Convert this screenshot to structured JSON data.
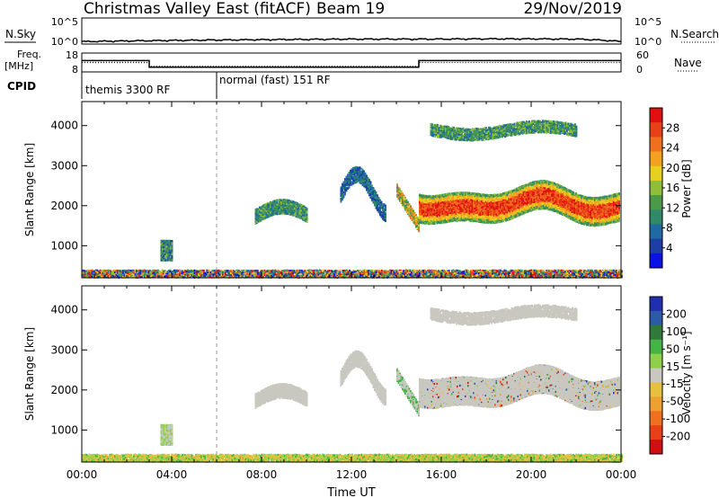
{
  "header": {
    "station": "Christmas Valley East (fitACF)",
    "beam": "Beam 19",
    "date": "29/Nov/2019"
  },
  "top_panel": {
    "nsky_label": "N.Sky",
    "nsky_axis_top": "10^5",
    "nsky_axis_bottom": "10^0",
    "nsearch_label": "N.Search",
    "nsearch_axis_top": "10^5",
    "nsearch_axis_bottom": "10^0",
    "freq_label_1": "Freq.",
    "freq_label_2": "[MHz]",
    "freq_axis_top": "18",
    "freq_axis_bottom": "8",
    "nave_label": "Nave",
    "nave_axis_top": "60",
    "nave_axis_bottom": "0",
    "cpid_label": "CPID",
    "cpid_1": "themis 3300 RF",
    "cpid_2": "normal (fast) 151 RF"
  },
  "colors": {
    "power": [
      "#0b12e6",
      "#1c3fa6",
      "#1f6aa3",
      "#2f8a6a",
      "#4a9a4a",
      "#8fbf3a",
      "#e8d020",
      "#f4a020",
      "#f07020",
      "#e84018",
      "#e01010"
    ],
    "velocity": [
      "#1f2fb0",
      "#2a5aa8",
      "#2f7a3a",
      "#44b544",
      "#8fd04a",
      "#c8c8c0",
      "#e8c040",
      "#f0a030",
      "#f07020",
      "#e84018",
      "#d01010"
    ]
  },
  "chart_data": [
    {
      "type": "line",
      "title": "N.Sky / N.Search",
      "scale": "log",
      "ylim": [
        1,
        100000
      ],
      "x": [
        "00:00",
        "02:00",
        "04:00",
        "06:00",
        "08:00",
        "10:00",
        "12:00",
        "14:00",
        "16:00",
        "18:00",
        "20:00",
        "22:00",
        "24:00"
      ],
      "series": [
        {
          "name": "N.Sky",
          "values": [
            3,
            4,
            5,
            6,
            7,
            8,
            9,
            9,
            9,
            10,
            10,
            9,
            3
          ]
        }
      ]
    },
    {
      "type": "line",
      "title": "Freq. [MHz] / Nave",
      "ylim": [
        8,
        18
      ],
      "x": [
        "00:00",
        "03:00",
        "03:00",
        "15:00",
        "15:00",
        "24:00"
      ],
      "series": [
        {
          "name": "Freq.",
          "values": [
            14,
            14,
            10.5,
            10.5,
            14,
            14
          ]
        },
        {
          "name": "Nave",
          "values": [
            13,
            13,
            11,
            11,
            13,
            13
          ]
        }
      ]
    },
    {
      "type": "heatmap",
      "colorbar_label": "Power [dB]",
      "colorbar_ticks": [
        "4",
        "8",
        "12",
        "16",
        "20",
        "24",
        "28"
      ],
      "ylabel": "Slant Range [km]",
      "yticks": [
        "1000",
        "2000",
        "3000",
        "4000"
      ],
      "ylim": [
        200,
        4600
      ],
      "xlim": [
        "00:00",
        "24:00"
      ]
    },
    {
      "type": "heatmap",
      "colorbar_label": "Velocity [m s⁻¹]",
      "colorbar_ticks": [
        "200",
        "100",
        "50",
        "15",
        "-15",
        "-50",
        "-100",
        "-200"
      ],
      "ylabel": "Slant Range [km]",
      "yticks": [
        "1000",
        "2000",
        "3000",
        "4000"
      ],
      "ylim": [
        200,
        4600
      ],
      "xlim": [
        "00:00",
        "24:00"
      ],
      "xticks": [
        "00:00",
        "04:00",
        "08:00",
        "12:00",
        "16:00",
        "20:00",
        "00:00"
      ],
      "xlabel": "Time UT"
    }
  ]
}
